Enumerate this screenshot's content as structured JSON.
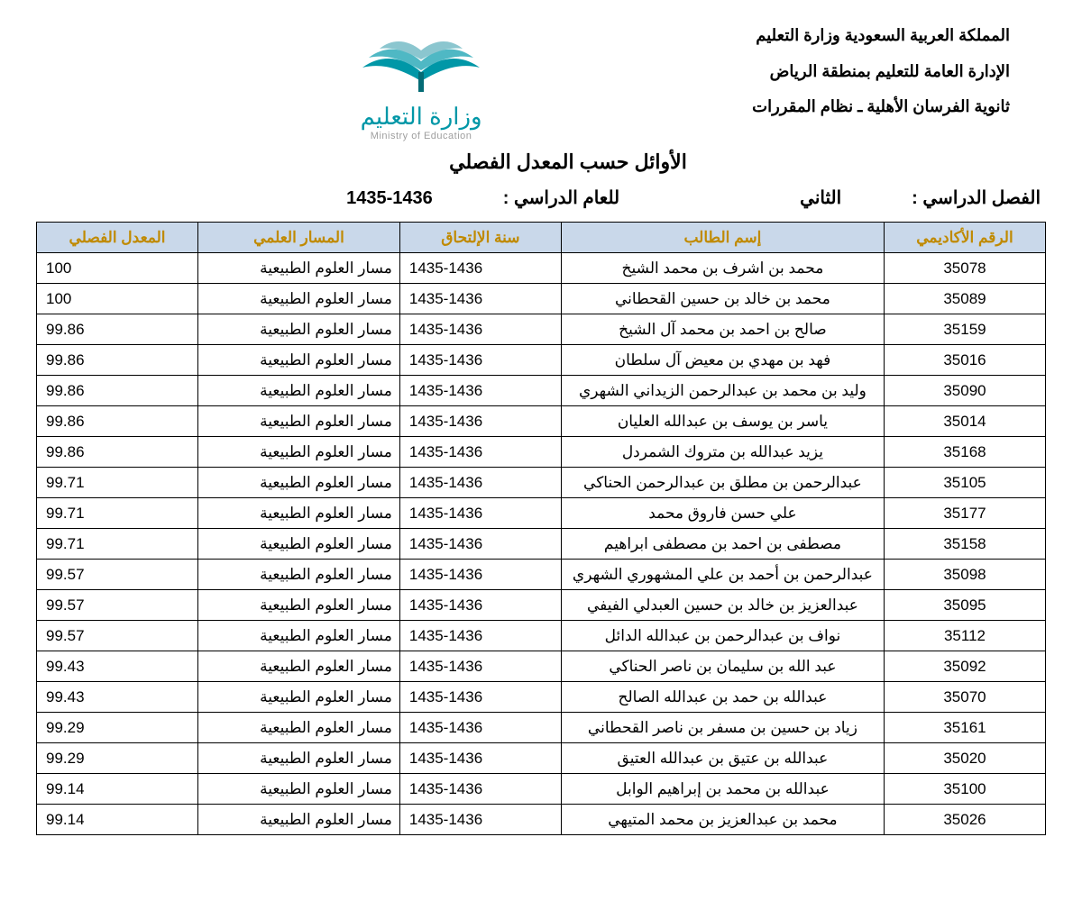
{
  "header": {
    "line1": "المملكة العربية السعودية وزارة التعليم",
    "line2": "الإدارة العامة للتعليم بمنطقة الرياض",
    "line3": "ثانوية الفرسان الأهلية ـ نظام المقررات",
    "logo_ar": "وزارة التعليم",
    "logo_en": "Ministry of Education"
  },
  "title": "الأوائل حسب المعدل الفصلي",
  "meta": {
    "semester_label": "الفصل الدراسي  :",
    "semester_value": "الثاني",
    "year_label": "للعام الدراسي  :",
    "year_value": "1435-1436"
  },
  "colors": {
    "header_bg": "#c9d8ea",
    "header_fg": "#c08a00",
    "border": "#000000",
    "logo_teal": "#0097a7",
    "logo_light": "#8bc6cf",
    "logo_gray": "#9e9e9e"
  },
  "table": {
    "columns": [
      {
        "key": "id",
        "label": "الرقم الأكاديمي"
      },
      {
        "key": "name",
        "label": "إسم الطالب"
      },
      {
        "key": "year",
        "label": "سنة الإلتحاق"
      },
      {
        "key": "track",
        "label": "المسار العلمي"
      },
      {
        "key": "gpa",
        "label": "المعدل الفصلي"
      }
    ],
    "rows": [
      {
        "id": "35078",
        "name": "محمد بن اشرف بن محمد  الشيخ",
        "year": "1435-1436",
        "track": "مسار العلوم الطبيعية",
        "gpa": "100"
      },
      {
        "id": "35089",
        "name": "محمد بن خالد بن حسين  القحطاني",
        "year": "1435-1436",
        "track": "مسار العلوم الطبيعية",
        "gpa": "100"
      },
      {
        "id": "35159",
        "name": "صالح بن احمد بن محمد آل الشيخ",
        "year": "1435-1436",
        "track": "مسار العلوم الطبيعية",
        "gpa": "99.86"
      },
      {
        "id": "35016",
        "name": "فهد بن مهدي بن معيض آل سلطان",
        "year": "1435-1436",
        "track": "مسار العلوم الطبيعية",
        "gpa": "99.86"
      },
      {
        "id": "35090",
        "name": "وليد بن محمد بن عبدالرحمن الزيداني الشهري",
        "year": "1435-1436",
        "track": "مسار العلوم الطبيعية",
        "gpa": "99.86"
      },
      {
        "id": "35014",
        "name": "ياسر بن يوسف بن عبدالله العليان",
        "year": "1435-1436",
        "track": "مسار العلوم الطبيعية",
        "gpa": "99.86"
      },
      {
        "id": "35168",
        "name": "يزيد عبدالله بن متروك الشمردل",
        "year": "1435-1436",
        "track": "مسار العلوم الطبيعية",
        "gpa": "99.86"
      },
      {
        "id": "35105",
        "name": "عبدالرحمن بن مطلق بن عبدالرحمن الحناكي",
        "year": "1435-1436",
        "track": "مسار العلوم الطبيعية",
        "gpa": "99.71"
      },
      {
        "id": "35177",
        "name": "علي حسن فاروق محمد",
        "year": "1435-1436",
        "track": "مسار العلوم الطبيعية",
        "gpa": "99.71"
      },
      {
        "id": "35158",
        "name": "مصطفى بن احمد بن مصطفى ابراهيم",
        "year": "1435-1436",
        "track": "مسار العلوم الطبيعية",
        "gpa": "99.71"
      },
      {
        "id": "35098",
        "name": "عبدالرحمن بن أحمد بن علي المشهوري الشهري",
        "year": "1435-1436",
        "track": "مسار العلوم الطبيعية",
        "gpa": "99.57"
      },
      {
        "id": "35095",
        "name": "عبدالعزيز بن خالد بن حسين العبدلي الفيفي",
        "year": "1435-1436",
        "track": "مسار العلوم الطبيعية",
        "gpa": "99.57"
      },
      {
        "id": "35112",
        "name": "نواف بن عبدالرحمن بن عبدالله الدائل",
        "year": "1435-1436",
        "track": "مسار العلوم الطبيعية",
        "gpa": "99.57"
      },
      {
        "id": "35092",
        "name": "عبد الله بن سليمان بن ناصر الحناكي",
        "year": "1435-1436",
        "track": "مسار العلوم الطبيعية",
        "gpa": "99.43"
      },
      {
        "id": "35070",
        "name": "عبدالله بن حمد بن عبدالله الصالح",
        "year": "1435-1436",
        "track": "مسار العلوم الطبيعية",
        "gpa": "99.43"
      },
      {
        "id": "35161",
        "name": "زياد بن حسين بن مسفر بن ناصر القحطاني",
        "year": "1435-1436",
        "track": "مسار العلوم الطبيعية",
        "gpa": "99.29"
      },
      {
        "id": "35020",
        "name": "عبدالله بن عتيق بن عبدالله العتيق",
        "year": "1435-1436",
        "track": "مسار العلوم الطبيعية",
        "gpa": "99.29"
      },
      {
        "id": "35100",
        "name": "عبدالله بن محمد بن إبراهيم الوابل",
        "year": "1435-1436",
        "track": "مسار العلوم الطبيعية",
        "gpa": "99.14"
      },
      {
        "id": "35026",
        "name": "محمد بن عبدالعزيز بن محمد المتيهي",
        "year": "1435-1436",
        "track": "مسار العلوم الطبيعية",
        "gpa": "99.14"
      }
    ]
  }
}
